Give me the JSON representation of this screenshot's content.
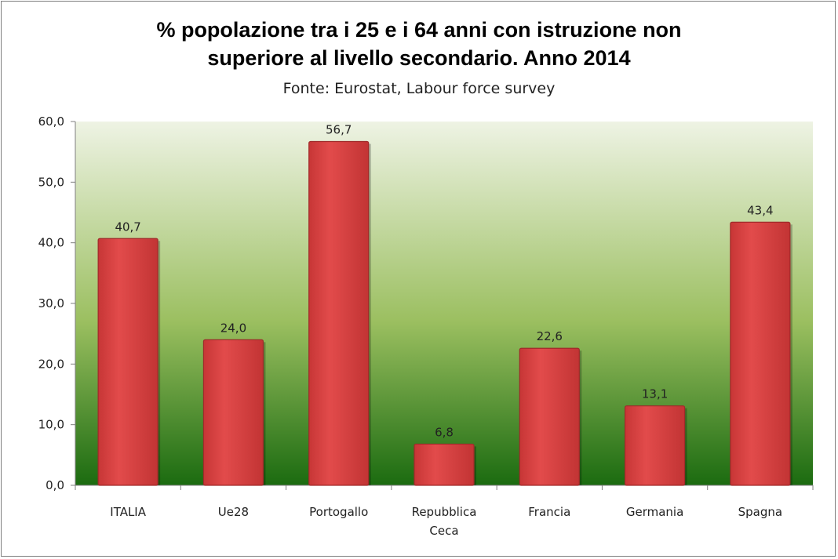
{
  "chart_data": {
    "type": "bar",
    "title_line1": "% popolazione tra i 25 e i 64 anni con istruzione non",
    "title_line2": "superiore al livello secondario. Anno 2014",
    "subtitle": "Fonte: Eurostat, Labour force survey",
    "categories": [
      [
        "ITALIA"
      ],
      [
        "Ue28"
      ],
      [
        "Portogallo"
      ],
      [
        "Repubblica",
        "Ceca"
      ],
      [
        "Francia"
      ],
      [
        "Germania"
      ],
      [
        "Spagna"
      ]
    ],
    "values": [
      40.7,
      24.0,
      56.7,
      6.8,
      22.6,
      13.1,
      43.4
    ],
    "value_labels": [
      "40,7",
      "24,0",
      "56,7",
      "6,8",
      "22,6",
      "13,1",
      "43,4"
    ],
    "yticks": [
      "0,0",
      "10,0",
      "20,0",
      "30,0",
      "40,0",
      "50,0",
      "60,0"
    ],
    "ylim": [
      0,
      60
    ],
    "xlabel": "",
    "ylabel": "",
    "grid": false,
    "colors": {
      "bar": "#d94040",
      "bar_edge": "#a02a2a",
      "plot_top": "#eef3e4",
      "plot_mid": "#9bbf60",
      "plot_bottom": "#1b6b10"
    }
  }
}
